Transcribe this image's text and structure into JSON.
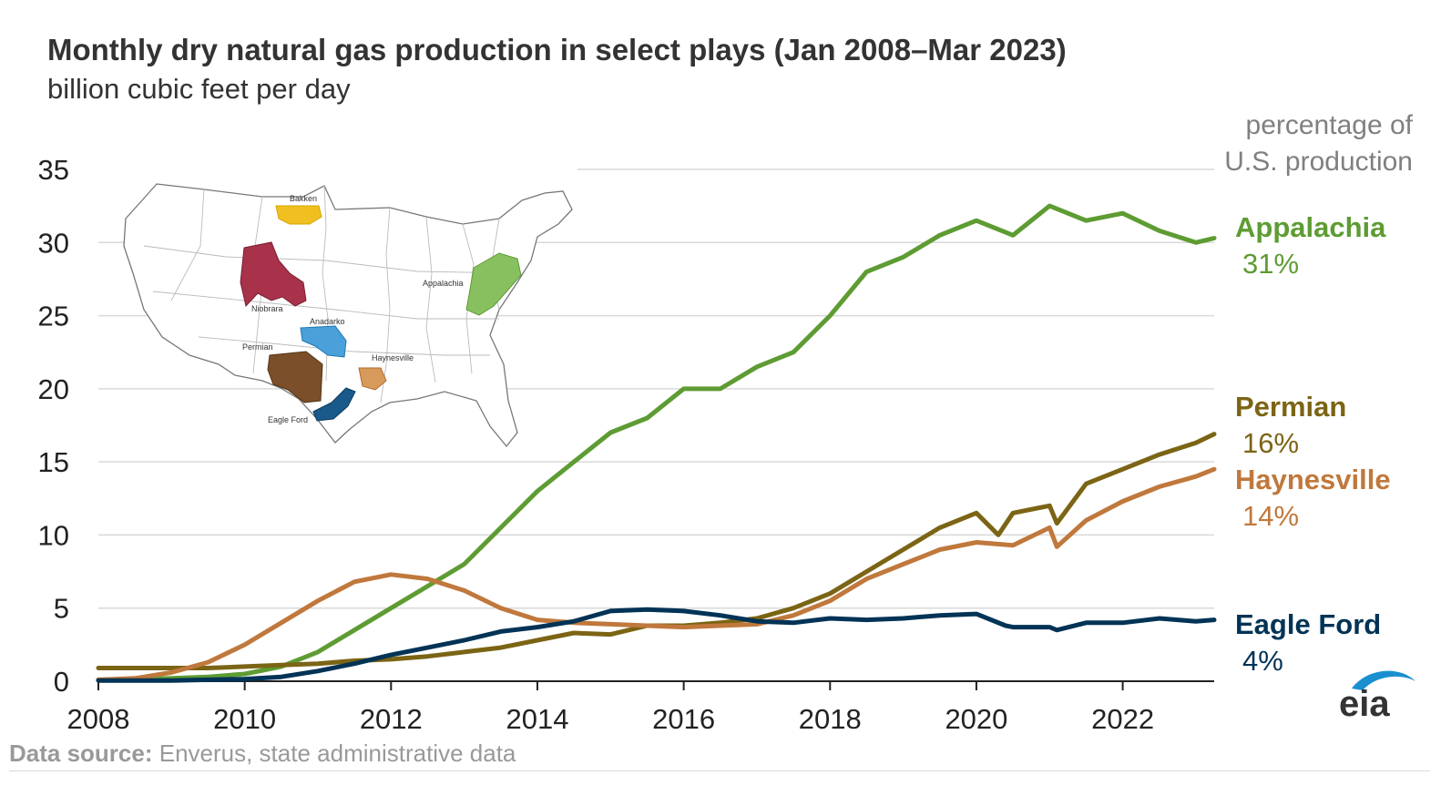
{
  "header": {
    "title": "Monthly dry natural gas production in select plays (Jan 2008–Mar 2023)",
    "subtitle": "billion cubic feet per day",
    "pct_heading_line1": "percentage of",
    "pct_heading_line2": "U.S. production"
  },
  "footer": {
    "source_label": "Data source:",
    "source_text": "Enverus, state administrative data",
    "logo_text": "eia"
  },
  "inset_map": {
    "labels": [
      "Bakken",
      "Niobrara",
      "Anadarko",
      "Permian",
      "Haynesville",
      "Eagle Ford",
      "Appalachia"
    ]
  },
  "chart_data": {
    "type": "line",
    "title": "Monthly dry natural gas production in select plays (Jan 2008–Mar 2023)",
    "ylabel": "billion cubic feet per day",
    "xlabel": "",
    "xlim": [
      2008,
      2023.25
    ],
    "ylim": [
      0,
      35
    ],
    "x_ticks": [
      "2008",
      "2010",
      "2012",
      "2014",
      "2016",
      "2018",
      "2020",
      "2022"
    ],
    "y_ticks": [
      "0",
      "5",
      "10",
      "15",
      "20",
      "25",
      "30",
      "35"
    ],
    "grid": true,
    "series": [
      {
        "name": "Appalachia",
        "share": "31%",
        "color": "#5e9c33",
        "x": [
          2008,
          2008.5,
          2009,
          2009.5,
          2010,
          2010.5,
          2011,
          2011.5,
          2012,
          2012.5,
          2013,
          2013.5,
          2014,
          2014.5,
          2015,
          2015.5,
          2016,
          2016.5,
          2017,
          2017.5,
          2018,
          2018.5,
          2019,
          2019.5,
          2020,
          2020.5,
          2021,
          2021.5,
          2022,
          2022.5,
          2023,
          2023.25
        ],
        "y": [
          0.1,
          0.1,
          0.2,
          0.3,
          0.5,
          1.0,
          2.0,
          3.5,
          5.0,
          6.5,
          8.0,
          10.5,
          13.0,
          15.0,
          17.0,
          18.0,
          20.0,
          20.0,
          21.5,
          22.5,
          25.0,
          28.0,
          29.0,
          30.5,
          31.5,
          30.5,
          32.5,
          31.5,
          32.0,
          30.8,
          30.0,
          30.3
        ]
      },
      {
        "name": "Permian",
        "share": "16%",
        "color": "#7b6414",
        "x": [
          2008,
          2008.5,
          2009,
          2009.5,
          2010,
          2010.5,
          2011,
          2011.5,
          2012,
          2012.5,
          2013,
          2013.5,
          2014,
          2014.5,
          2015,
          2015.5,
          2016,
          2016.5,
          2017,
          2017.5,
          2018,
          2018.5,
          2019,
          2019.5,
          2020,
          2020.3,
          2020.5,
          2021,
          2021.1,
          2021.5,
          2022,
          2022.5,
          2023,
          2023.25
        ],
        "y": [
          0.9,
          0.9,
          0.9,
          0.9,
          1.0,
          1.1,
          1.2,
          1.4,
          1.5,
          1.7,
          2.0,
          2.3,
          2.8,
          3.3,
          3.2,
          3.8,
          3.8,
          4.0,
          4.3,
          5.0,
          6.0,
          7.5,
          9.0,
          10.5,
          11.5,
          10.0,
          11.5,
          12.0,
          10.8,
          13.5,
          14.5,
          15.5,
          16.3,
          16.9
        ]
      },
      {
        "name": "Haynesville",
        "share": "14%",
        "color": "#c0783c",
        "x": [
          2008,
          2008.5,
          2009,
          2009.5,
          2010,
          2010.5,
          2011,
          2011.5,
          2012,
          2012.5,
          2013,
          2013.5,
          2014,
          2014.5,
          2015,
          2015.5,
          2016,
          2016.5,
          2017,
          2017.5,
          2018,
          2018.5,
          2019,
          2019.5,
          2020,
          2020.5,
          2021,
          2021.1,
          2021.5,
          2022,
          2022.5,
          2023,
          2023.25
        ],
        "y": [
          0.1,
          0.2,
          0.6,
          1.3,
          2.5,
          4.0,
          5.5,
          6.8,
          7.3,
          7.0,
          6.2,
          5.0,
          4.2,
          4.0,
          3.9,
          3.8,
          3.7,
          3.8,
          3.9,
          4.5,
          5.5,
          7.0,
          8.0,
          9.0,
          9.5,
          9.3,
          10.5,
          9.2,
          11.0,
          12.3,
          13.3,
          14.0,
          14.5
        ]
      },
      {
        "name": "Eagle Ford",
        "share": "4%",
        "color": "#003355",
        "x": [
          2008,
          2008.5,
          2009,
          2009.5,
          2010,
          2010.5,
          2011,
          2011.5,
          2012,
          2012.5,
          2013,
          2013.5,
          2014,
          2014.5,
          2015,
          2015.5,
          2016,
          2016.5,
          2017,
          2017.5,
          2018,
          2018.5,
          2019,
          2019.5,
          2020,
          2020.4,
          2020.5,
          2021,
          2021.1,
          2021.5,
          2022,
          2022.5,
          2023,
          2023.25
        ],
        "y": [
          0.05,
          0.05,
          0.05,
          0.1,
          0.15,
          0.3,
          0.7,
          1.2,
          1.8,
          2.3,
          2.8,
          3.4,
          3.7,
          4.1,
          4.8,
          4.9,
          4.8,
          4.5,
          4.1,
          4.0,
          4.3,
          4.2,
          4.3,
          4.5,
          4.6,
          3.8,
          3.7,
          3.7,
          3.5,
          4.0,
          4.0,
          4.3,
          4.1,
          4.2
        ]
      }
    ]
  }
}
